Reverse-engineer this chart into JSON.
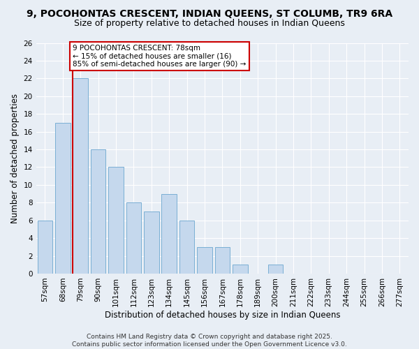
{
  "title1": "9, POCOHONTAS CRESCENT, INDIAN QUEENS, ST COLUMB, TR9 6RA",
  "title2": "Size of property relative to detached houses in Indian Queens",
  "xlabel": "Distribution of detached houses by size in Indian Queens",
  "ylabel": "Number of detached properties",
  "categories": [
    "57sqm",
    "68sqm",
    "79sqm",
    "90sqm",
    "101sqm",
    "112sqm",
    "123sqm",
    "134sqm",
    "145sqm",
    "156sqm",
    "167sqm",
    "178sqm",
    "189sqm",
    "200sqm",
    "211sqm",
    "222sqm",
    "233sqm",
    "244sqm",
    "255sqm",
    "266sqm",
    "277sqm"
  ],
  "values": [
    6,
    17,
    22,
    14,
    12,
    8,
    7,
    9,
    6,
    3,
    3,
    1,
    0,
    1,
    0,
    0,
    0,
    0,
    0,
    0,
    0
  ],
  "bar_color": "#c5d8ed",
  "bar_edge_color": "#7aafd4",
  "red_line_index": 2,
  "annotation_text": "9 POCOHONTAS CRESCENT: 78sqm\n← 15% of detached houses are smaller (16)\n85% of semi-detached houses are larger (90) →",
  "annotation_box_color": "#ffffff",
  "annotation_box_edge": "#cc0000",
  "ylim": [
    0,
    26
  ],
  "yticks": [
    0,
    2,
    4,
    6,
    8,
    10,
    12,
    14,
    16,
    18,
    20,
    22,
    24,
    26
  ],
  "background_color": "#e8eef5",
  "grid_color": "#ffffff",
  "footer": "Contains HM Land Registry data © Crown copyright and database right 2025.\nContains public sector information licensed under the Open Government Licence v3.0.",
  "title_fontsize": 10,
  "subtitle_fontsize": 9,
  "xlabel_fontsize": 8.5,
  "ylabel_fontsize": 8.5,
  "tick_fontsize": 7.5,
  "annot_fontsize": 7.5,
  "footer_fontsize": 6.5
}
